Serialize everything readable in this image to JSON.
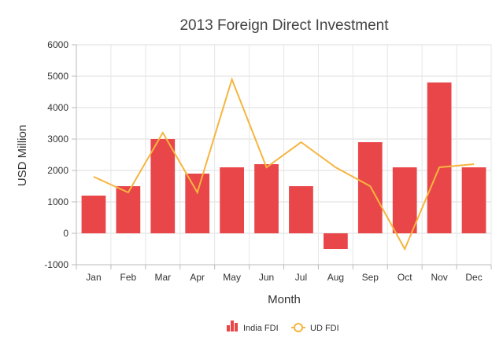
{
  "chart_data": {
    "type": "bar",
    "title": "2013 Foreign Direct Investment",
    "xlabel": "Month",
    "ylabel": "USD Million",
    "categories": [
      "Jan",
      "Feb",
      "Mar",
      "Apr",
      "May",
      "Jun",
      "Jul",
      "Aug",
      "Sep",
      "Oct",
      "Nov",
      "Dec"
    ],
    "ylim": [
      -1000,
      6000
    ],
    "yticks": [
      -1000,
      0,
      1000,
      2000,
      3000,
      4000,
      5000,
      6000
    ],
    "grid": true,
    "legend_position": "bottom",
    "series": [
      {
        "name": "India FDI",
        "type": "bar",
        "color": "#e94649",
        "values": [
          1200,
          1500,
          3000,
          1900,
          2100,
          2200,
          1500,
          -500,
          2900,
          2100,
          4800,
          2100
        ]
      },
      {
        "name": "UD FDI",
        "type": "line",
        "color": "#f6b53f",
        "values": [
          1800,
          1300,
          3200,
          1300,
          4900,
          2100,
          2900,
          2100,
          1500,
          -500,
          2100,
          2200
        ]
      }
    ]
  }
}
